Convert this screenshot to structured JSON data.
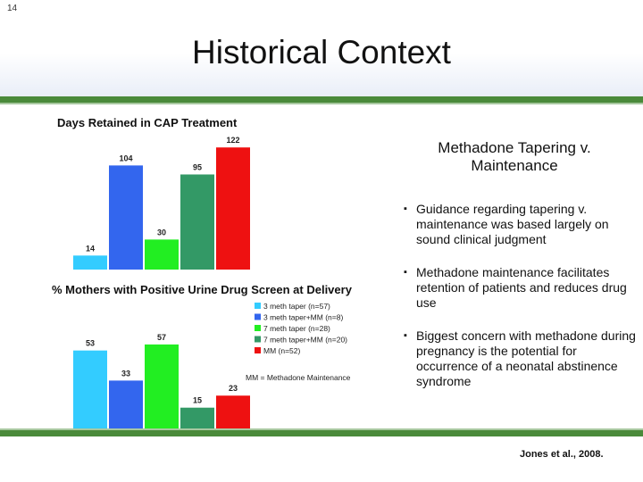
{
  "slide": {
    "number": "14",
    "title": "Historical Context",
    "citation": "Jones et al., 2008."
  },
  "right": {
    "title": "Methadone Tapering v. Maintenance",
    "bullets": [
      "Guidance regarding tapering v. maintenance was based largely on sound clinical judgment",
      "Methadone maintenance facilitates retention of patients and reduces drug use",
      "Biggest concern with methadone during pregnancy is the potential for occurrence of a neonatal abstinence syndrome"
    ]
  },
  "chart_data": [
    {
      "type": "bar",
      "title": "Days Retained in CAP Treatment",
      "categories": [
        "3 meth taper (n=57)",
        "3 meth taper+MM (n=8)",
        "7 meth taper (n=28)",
        "7 meth taper+MM (n=20)",
        "MM (n=52)"
      ],
      "values": [
        14,
        104,
        30,
        95,
        122
      ],
      "data_labels": [
        "14",
        "104",
        "30",
        "95",
        "122"
      ],
      "colors": [
        "#33ccff",
        "#3366ee",
        "#22ee22",
        "#339966",
        "#ee1111"
      ],
      "ylim": [
        0,
        140
      ],
      "grid": false,
      "legend": "none"
    },
    {
      "type": "bar",
      "title": "% Mothers with Positive Urine Drug Screen at Delivery",
      "categories": [
        "3 meth taper (n=57)",
        "3 meth taper+MM (n=8)",
        "7 meth taper (n=28)",
        "7 meth taper+MM (n=20)",
        "MM (n=52)"
      ],
      "values": [
        53,
        33,
        57,
        15,
        23
      ],
      "data_labels": [
        "53",
        "33",
        "57",
        "15",
        "23"
      ],
      "colors": [
        "#33ccff",
        "#3366ee",
        "#22ee22",
        "#339966",
        "#ee1111"
      ],
      "ylim": [
        0,
        70
      ],
      "grid": false,
      "legend": "right",
      "legend_entries": [
        "3 meth taper (n=57)",
        "3 meth taper+MM (n=8)",
        "7 meth taper (n=28)",
        "7 meth taper+MM (n=20)",
        "MM (n=52)"
      ],
      "note": "MM = Methadone Maintenance"
    }
  ]
}
